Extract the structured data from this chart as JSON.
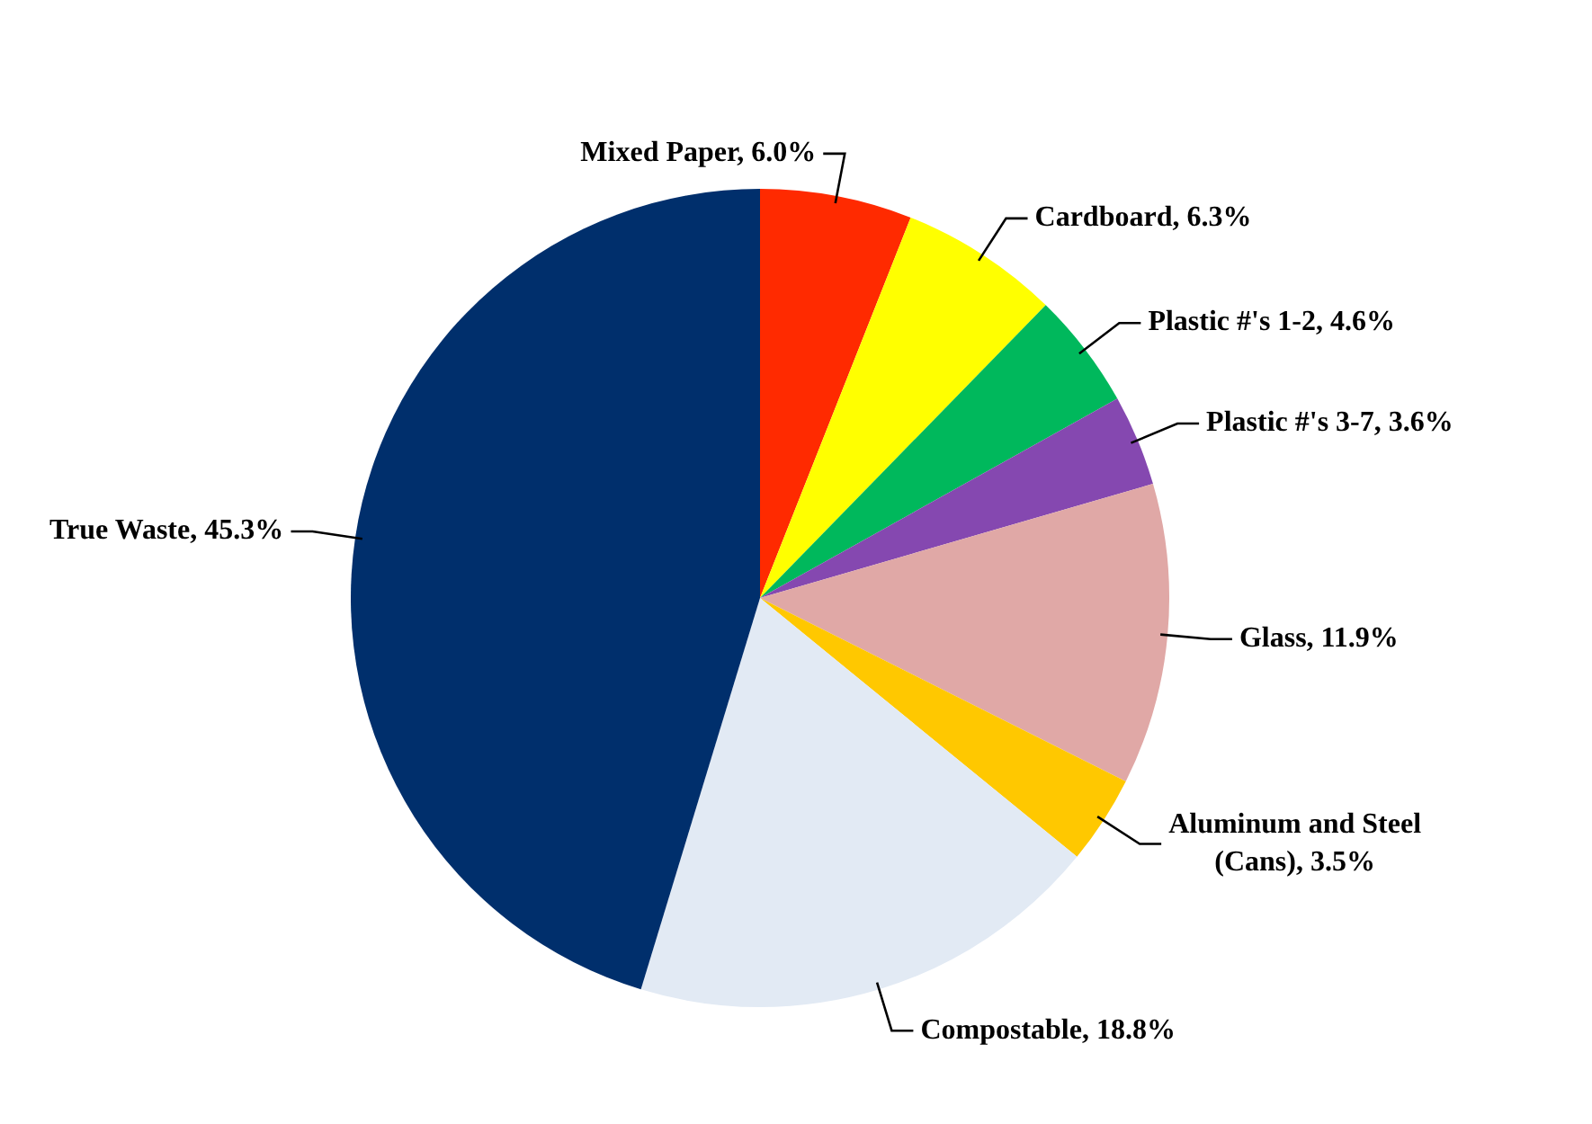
{
  "chart_data": {
    "type": "pie",
    "categories": [
      "Mixed Paper",
      "Cardboard",
      "Plastic #'s 1-2",
      "Plastic #'s 3-7",
      "Glass",
      "Aluminum and Steel (Cans)",
      "Compostable",
      "True Waste"
    ],
    "values": [
      6.0,
      6.3,
      4.6,
      3.6,
      11.9,
      3.5,
      18.8,
      45.3
    ],
    "colors": [
      "#ff2a00",
      "#ffff00",
      "#00b85c",
      "#8548b0",
      "#e0a8a6",
      "#ffc800",
      "#e2eaf4",
      "#002f6c"
    ],
    "value_labels": [
      "6.0%",
      "6.3%",
      "4.6%",
      "3.6%",
      "11.9%",
      "3.5%",
      "18.8%",
      "45.3%"
    ],
    "legend": false
  }
}
